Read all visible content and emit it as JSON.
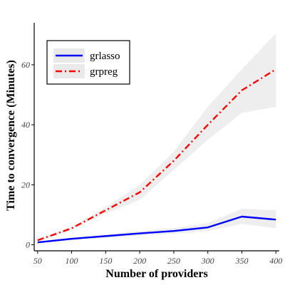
{
  "chart_data": {
    "type": "line",
    "title": "",
    "xlabel": "Number of providers",
    "ylabel": "Time to convergence (Minutes)",
    "x": [
      50,
      100,
      150,
      200,
      250,
      300,
      350,
      400
    ],
    "xlim": [
      45,
      405
    ],
    "ylim": [
      -2,
      74
    ],
    "xticks": [
      50,
      100,
      150,
      200,
      250,
      300,
      350,
      400
    ],
    "yticks": [
      0,
      20,
      40,
      60
    ],
    "grid": false,
    "legend_position": "top-left",
    "series": [
      {
        "name": "grlasso",
        "color": "#0000ff",
        "style": "solid",
        "values": [
          0.8,
          2.0,
          2.9,
          3.8,
          4.6,
          5.8,
          9.4,
          8.4
        ],
        "band_lower": [
          0.5,
          1.5,
          2.3,
          3.0,
          3.7,
          4.6,
          7.0,
          5.5
        ],
        "band_upper": [
          1.1,
          2.5,
          3.5,
          4.6,
          5.6,
          7.2,
          12.0,
          11.5
        ]
      },
      {
        "name": "grpreg",
        "color": "#ff0000",
        "style": "dashdot",
        "values": [
          1.5,
          5.5,
          11.5,
          17.5,
          28.0,
          40.0,
          51.5,
          58.5
        ],
        "band_lower": [
          1.2,
          5.0,
          10.5,
          15.0,
          25.0,
          35.0,
          44.0,
          46.0
        ],
        "band_upper": [
          1.9,
          6.0,
          12.5,
          20.0,
          31.0,
          46.0,
          58.5,
          70.5
        ]
      }
    ],
    "band_color": "#e0e0e0"
  }
}
